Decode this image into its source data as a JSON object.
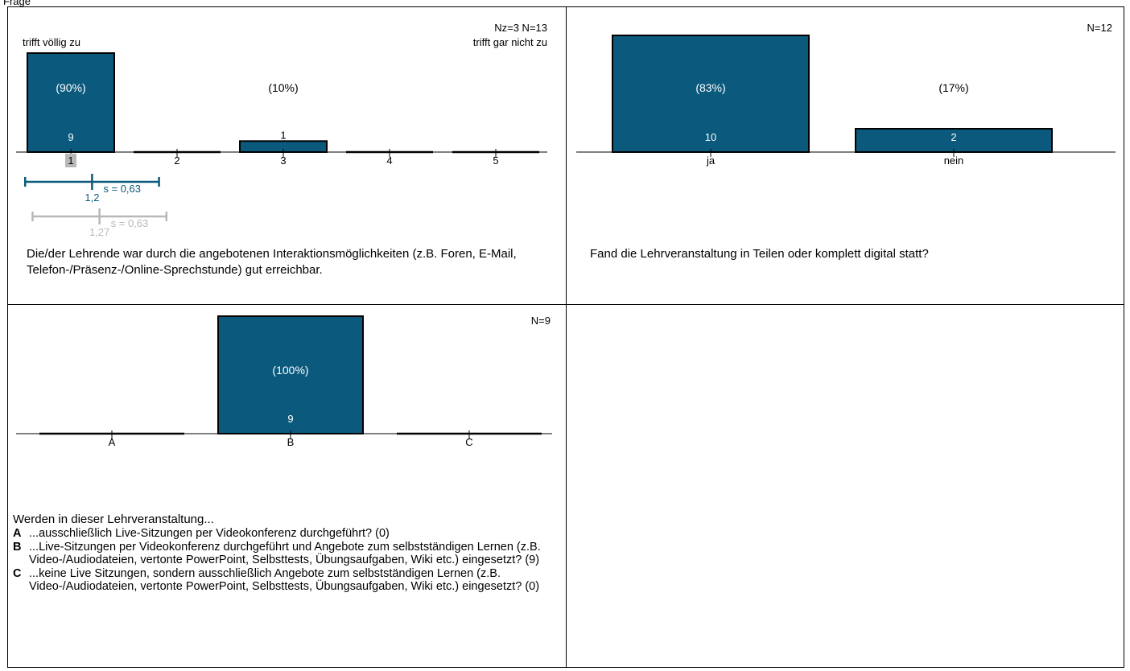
{
  "top_fragment": "Frage",
  "chart_data": [
    {
      "type": "bar",
      "stats_label": "Nz=3  N=13",
      "left_anchor": "trifft völlig zu",
      "right_anchor": "trifft gar nicht zu",
      "categories": [
        "1",
        "2",
        "3",
        "4",
        "5"
      ],
      "values": [
        9,
        0,
        1,
        0,
        0
      ],
      "value_labels": [
        "9",
        "",
        "1",
        "",
        ""
      ],
      "percent_labels": [
        "(90%)",
        "",
        "(10%)",
        "",
        ""
      ],
      "ylim": [
        0,
        9
      ],
      "highlight_category": "1",
      "mean_current": {
        "mean": 1.2,
        "mean_label": "1,2",
        "sd": 0.63,
        "sd_label": "s = 0,63",
        "color": "#0b5a7d"
      },
      "mean_reference": {
        "mean": 1.27,
        "mean_label": "1,27",
        "sd": 0.63,
        "sd_label": "s = 0,63",
        "color": "#b8b8b8"
      },
      "question": "Die/der Lehrende war durch die angebotenen Interaktionsmöglichkeiten (z.B. Foren, E-Mail, Telefon-/Präsenz-/Online-Sprechstunde) gut erreichbar."
    },
    {
      "type": "bar",
      "stats_label": "N=12",
      "categories": [
        "ja",
        "nein"
      ],
      "values": [
        10,
        2
      ],
      "value_labels": [
        "10",
        "2"
      ],
      "percent_labels": [
        "(83%)",
        "(17%)"
      ],
      "ylim": [
        0,
        10
      ],
      "question": "Fand die Lehrveranstaltung in Teilen oder komplett digital statt?"
    },
    {
      "type": "bar",
      "stats_label": "N=9",
      "categories": [
        "A",
        "B",
        "C"
      ],
      "values": [
        0,
        9,
        0
      ],
      "value_labels": [
        "",
        "9",
        ""
      ],
      "percent_labels": [
        "",
        "(100%)",
        ""
      ],
      "ylim": [
        0,
        9
      ],
      "question": "Werden in dieser Lehrveranstaltung...",
      "legend": [
        {
          "key": "A",
          "text": "...ausschließlich Live-Sitzungen per Videokonferenz durchgeführt? (0)"
        },
        {
          "key": "B",
          "text": "...Live-Sitzungen per Videokonferenz durchgeführt und Angebote zum selbstständigen Lernen (z.B. Video-/Audiodateien, vertonte PowerPoint, Selbsttests, Übungsaufgaben, Wiki etc.) eingesetzt? (9)"
        },
        {
          "key": "C",
          "text": "...keine Live Sitzungen, sondern ausschließlich Angebote zum selbstständigen Lernen (z.B. Video-/Audiodateien, vertonte PowerPoint, Selbsttests, Übungsaufgaben, Wiki etc.) eingesetzt? (0)"
        }
      ]
    }
  ],
  "colors": {
    "bar": "#0b5a7d",
    "bar_border": "#000000",
    "bar_text": "#ffffff",
    "reference": "#b8b8b8",
    "highlight": "#b8b8b8"
  }
}
